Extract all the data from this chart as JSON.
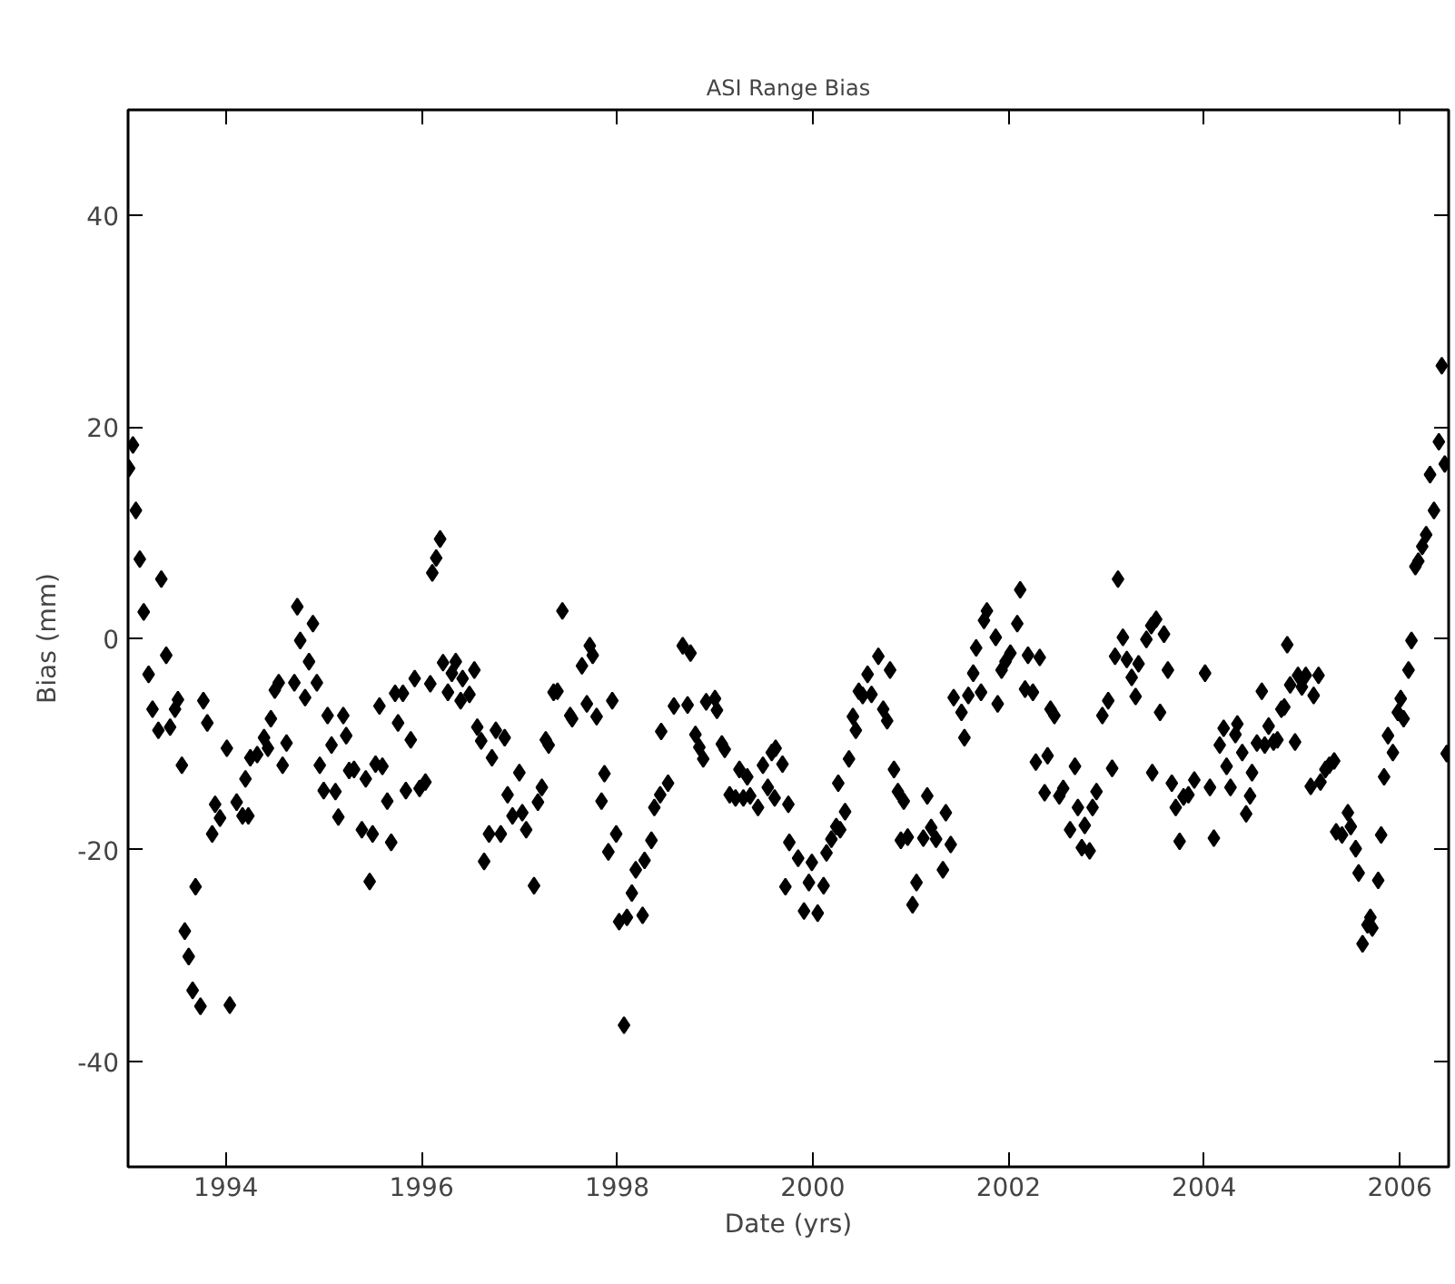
{
  "chart_data": {
    "type": "scatter",
    "title": "ASI Range Bias",
    "xlabel": "Date (yrs)",
    "ylabel": "Bias (mm)",
    "xlim": [
      1993,
      2006.5
    ],
    "xticks": [
      1994,
      1996,
      1998,
      2000,
      2002,
      2004,
      2006
    ],
    "ylim": [
      -50,
      50
    ],
    "yticks": [
      -40,
      -20,
      0,
      20,
      40
    ],
    "grid": false,
    "marker": "diamond",
    "series": [
      {
        "color": "#000000",
        "x": [
          1993.01,
          1993.05,
          1993.08,
          1993.12,
          1993.16,
          1993.21,
          1993.34,
          1993.39,
          1993.25,
          1993.31,
          1993.43,
          1993.48,
          1993.51,
          1993.55,
          1993.69,
          1993.58,
          1993.62,
          1993.66,
          1993.74,
          1994.04,
          1993.77,
          1993.81,
          1993.89,
          1993.86,
          1993.94,
          1994.01,
          1994.11,
          1994.17,
          1994.23,
          1994.2,
          1994.25,
          1994.32,
          1994.39,
          1994.43,
          1994.46,
          1994.5,
          1994.54,
          1994.58,
          1994.62,
          1994.7,
          1994.73,
          1994.76,
          1994.81,
          1994.85,
          1994.89,
          1994.93,
          1994.96,
          1995.0,
          1995.04,
          1995.08,
          1995.12,
          1995.15,
          1995.2,
          1995.23,
          1995.26,
          1995.31,
          1995.39,
          1995.43,
          1995.5,
          1995.47,
          1995.53,
          1995.6,
          1995.57,
          1995.65,
          1995.69,
          1995.73,
          1995.81,
          1995.76,
          1995.84,
          1995.89,
          1995.93,
          1995.98,
          1996.04,
          1996.09,
          1996.11,
          1996.15,
          1996.19,
          1996.22,
          1996.27,
          1996.31,
          1996.35,
          1996.4,
          1996.42,
          1996.49,
          1996.54,
          1996.57,
          1996.61,
          1996.72,
          1996.64,
          1996.69,
          1996.76,
          1996.81,
          1996.85,
          1996.88,
          1996.93,
          1997.0,
          1997.03,
          1997.07,
          1997.15,
          1997.19,
          1997.23,
          1997.27,
          1997.3,
          1997.35,
          1997.39,
          1997.44,
          1997.52,
          1997.54,
          1997.64,
          1997.72,
          1997.75,
          1997.69,
          1997.79,
          1997.95,
          1997.87,
          1997.84,
          1997.99,
          1997.91,
          1998.07,
          1998.02,
          1998.1,
          1998.26,
          1998.15,
          1998.19,
          1998.28,
          1998.35,
          1998.38,
          1998.44,
          1998.52,
          1998.45,
          1998.58,
          1998.67,
          1998.75,
          1998.72,
          1998.8,
          1998.84,
          1998.88,
          1998.91,
          1999.0,
          1999.02,
          1999.07,
          1999.1,
          1999.15,
          1999.21,
          1999.25,
          1999.33,
          1999.29,
          1999.36,
          1999.44,
          1999.49,
          1999.54,
          1999.58,
          1999.62,
          1999.69,
          1999.61,
          1999.75,
          1999.76,
          1999.72,
          1999.85,
          1999.99,
          1999.96,
          1999.91,
          2000.05,
          2000.11,
          2000.14,
          2000.19,
          2000.24,
          2000.28,
          2000.33,
          2000.26,
          2000.37,
          2000.41,
          2000.44,
          2000.47,
          2000.51,
          2000.56,
          2000.6,
          2000.67,
          2000.79,
          2000.72,
          2000.76,
          2000.83,
          2000.87,
          2000.93,
          2000.9,
          2000.97,
          2001.06,
          2001.02,
          2001.13,
          2001.17,
          2001.21,
          2001.26,
          2001.33,
          2001.36,
          2001.41,
          2001.44,
          2001.55,
          2001.52,
          2001.59,
          2001.64,
          2001.67,
          2001.72,
          2001.75,
          2001.78,
          2001.87,
          2001.89,
          2001.93,
          2001.97,
          2002.02,
          2002.12,
          2002.09,
          2002.2,
          2002.32,
          2002.17,
          2002.25,
          2002.43,
          2002.47,
          2002.28,
          2002.4,
          2002.37,
          2002.52,
          2002.56,
          2002.68,
          2002.71,
          2002.63,
          2002.78,
          2002.75,
          2002.83,
          2002.86,
          2002.9,
          2002.96,
          2003.02,
          2003.06,
          2003.12,
          2003.09,
          2003.17,
          2003.21,
          2003.26,
          2003.33,
          2003.3,
          2003.41,
          2003.46,
          2003.51,
          2003.59,
          2003.63,
          2003.55,
          2003.47,
          2003.67,
          2003.75,
          2003.71,
          2003.79,
          2003.84,
          2003.9,
          2004.01,
          2004.06,
          2004.1,
          2004.16,
          2004.2,
          2004.23,
          2004.27,
          2004.34,
          2004.32,
          2004.39,
          2004.43,
          2004.47,
          2004.49,
          2004.54,
          2004.59,
          2004.62,
          2004.66,
          2004.71,
          2004.75,
          2004.79,
          2004.82,
          2004.85,
          2004.88,
          2004.93,
          2004.96,
          2005.0,
          2005.04,
          2005.12,
          2005.17,
          2005.09,
          2005.19,
          2005.24,
          2005.28,
          2005.33,
          2005.35,
          2005.41,
          2005.47,
          2005.5,
          2005.55,
          2005.58,
          2005.62,
          2005.67,
          2005.72,
          2005.7,
          2005.78,
          2005.81,
          2005.84,
          2005.88,
          2005.93,
          2005.98,
          2006.01,
          2006.04,
          2006.09,
          2006.12,
          2006.16,
          2006.19,
          2006.23,
          2006.27,
          2006.35,
          2006.31,
          2006.4,
          2006.46,
          2006.43,
          2006.48
        ],
        "values": [
          16.1,
          18.3,
          12.1,
          7.5,
          2.5,
          -3.4,
          5.6,
          -1.6,
          -6.7,
          -8.7,
          -8.4,
          -6.7,
          -5.8,
          -12.0,
          -23.5,
          -27.7,
          -30.1,
          -33.3,
          -34.8,
          -34.7,
          -5.9,
          -8.0,
          -15.7,
          -18.5,
          -17.0,
          -10.4,
          -15.5,
          -16.8,
          -16.8,
          -13.3,
          -11.3,
          -11.0,
          -9.4,
          -10.4,
          -7.6,
          -4.9,
          -4.2,
          -12.0,
          -9.9,
          -4.2,
          3.0,
          -0.2,
          -5.6,
          -2.2,
          1.4,
          -4.2,
          -12.0,
          -14.4,
          -7.3,
          -10.1,
          -14.5,
          -16.9,
          -7.3,
          -9.2,
          -12.5,
          -12.4,
          -18.1,
          -13.3,
          -18.5,
          -23.0,
          -11.9,
          -12.1,
          -6.4,
          -15.4,
          -19.3,
          -5.2,
          -5.2,
          -8.0,
          -14.4,
          -9.6,
          -3.8,
          -14.2,
          -13.6,
          -4.3,
          6.2,
          7.6,
          9.4,
          -2.3,
          -5.1,
          -3.3,
          -2.2,
          -5.9,
          -3.8,
          -5.3,
          -3.0,
          -8.4,
          -9.7,
          -11.3,
          -21.1,
          -18.5,
          -8.7,
          -18.5,
          -9.4,
          -14.8,
          -16.8,
          -12.7,
          -16.5,
          -18.1,
          -23.4,
          -15.5,
          -14.1,
          -9.6,
          -10.1,
          -5.1,
          -5.0,
          2.6,
          -7.3,
          -7.6,
          -2.6,
          -0.7,
          -1.6,
          -6.2,
          -7.4,
          -5.9,
          -12.8,
          -15.4,
          -18.5,
          -20.2,
          -36.6,
          -26.8,
          -26.4,
          -26.2,
          -24.1,
          -21.9,
          -21.0,
          -19.1,
          -16.0,
          -14.8,
          -13.7,
          -8.8,
          -6.4,
          -0.7,
          -1.4,
          -6.3,
          -9.1,
          -10.3,
          -11.4,
          -6.0,
          -5.7,
          -6.8,
          -10.0,
          -10.5,
          -14.8,
          -15.1,
          -12.4,
          -13.1,
          -15.1,
          -14.9,
          -16.0,
          -12.0,
          -14.1,
          -10.8,
          -10.4,
          -11.9,
          -15.1,
          -15.7,
          -19.3,
          -23.5,
          -20.8,
          -21.2,
          -23.1,
          -25.8,
          -26.0,
          -23.4,
          -20.3,
          -19.0,
          -17.8,
          -18.1,
          -16.4,
          -13.7,
          -11.4,
          -7.4,
          -8.7,
          -5.0,
          -5.4,
          -3.4,
          -5.3,
          -1.7,
          -3.0,
          -6.7,
          -7.8,
          -12.4,
          -14.5,
          -15.4,
          -19.1,
          -18.8,
          -23.1,
          -25.2,
          -18.9,
          -14.9,
          -17.9,
          -19.0,
          -21.9,
          -16.5,
          -19.5,
          -5.6,
          -9.4,
          -7.0,
          -5.4,
          -3.3,
          -0.9,
          -5.1,
          1.7,
          2.6,
          0.1,
          -6.2,
          -3.0,
          -2.2,
          -1.4,
          4.6,
          1.4,
          -1.6,
          -1.8,
          -4.8,
          -5.1,
          -6.7,
          -7.3,
          -11.7,
          -11.1,
          -14.6,
          -14.9,
          -14.2,
          -12.1,
          -16.0,
          -18.1,
          -17.7,
          -19.8,
          -20.1,
          -16.0,
          -14.5,
          -7.3,
          -5.9,
          -12.3,
          5.6,
          -1.7,
          0.1,
          -2.0,
          -3.7,
          -2.4,
          -5.5,
          -0.1,
          1.2,
          1.8,
          0.4,
          -3.0,
          -7.0,
          -12.7,
          -13.7,
          -19.2,
          -16.0,
          -15.0,
          -14.8,
          -13.4,
          -3.3,
          -14.1,
          -18.9,
          -10.1,
          -8.5,
          -12.1,
          -14.1,
          -8.1,
          -9.1,
          -10.8,
          -16.6,
          -14.9,
          -12.7,
          -9.9,
          -5.0,
          -10.1,
          -8.3,
          -9.8,
          -9.6,
          -6.7,
          -6.5,
          -0.6,
          -4.4,
          -9.8,
          -3.5,
          -4.6,
          -3.5,
          -5.4,
          -3.5,
          -14.0,
          -13.6,
          -12.4,
          -12.0,
          -11.6,
          -18.3,
          -18.6,
          -16.5,
          -17.8,
          -19.9,
          -22.2,
          -28.9,
          -27.1,
          -27.4,
          -26.4,
          -22.9,
          -18.6,
          -13.1,
          -9.2,
          -10.8,
          -7.0,
          -5.7,
          -7.6,
          -3.0,
          -0.2,
          6.8,
          7.3,
          8.7,
          9.8,
          12.1,
          15.5,
          18.6,
          16.5,
          25.8,
          -10.9
        ]
      }
    ]
  }
}
